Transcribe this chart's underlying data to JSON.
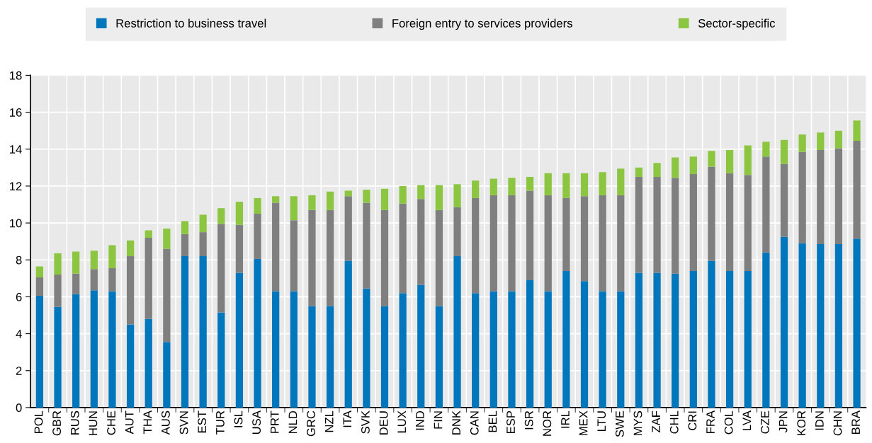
{
  "chart_data": {
    "type": "bar",
    "stacked": true,
    "categories": [
      "POL",
      "GBR",
      "RUS",
      "HUN",
      "CHE",
      "AUT",
      "THA",
      "AUS",
      "SVN",
      "EST",
      "TUR",
      "ISL",
      "USA",
      "PRT",
      "NLD",
      "GRC",
      "NZL",
      "ITA",
      "SVK",
      "DEU",
      "LUX",
      "IND",
      "FIN",
      "DNK",
      "CAN",
      "BEL",
      "ESP",
      "ISR",
      "NOR",
      "IRL",
      "MEX",
      "LTU",
      "SWE",
      "MYS",
      "ZAF",
      "CHL",
      "CRI",
      "FRA",
      "COL",
      "LVA",
      "CZE",
      "JPN",
      "KOR",
      "IDN",
      "CHN",
      "BRA"
    ],
    "series": [
      {
        "name": "Restriction to business travel",
        "color": "#0077bd",
        "values": [
          6.05,
          5.45,
          6.15,
          6.35,
          6.3,
          4.5,
          4.8,
          3.55,
          8.2,
          8.2,
          5.15,
          7.3,
          8.05,
          6.3,
          6.3,
          5.5,
          5.5,
          7.95,
          6.45,
          5.5,
          6.2,
          6.65,
          5.5,
          8.2,
          6.2,
          6.3,
          6.3,
          6.9,
          6.3,
          7.4,
          6.85,
          6.3,
          6.3,
          7.3,
          7.3,
          7.25,
          7.4,
          7.95,
          7.4,
          7.4,
          8.4,
          9.25,
          8.9,
          8.85,
          8.85,
          9.15
        ]
      },
      {
        "name": "Foreign entry to services providers",
        "color": "#7f7f7f",
        "values": [
          1.0,
          1.75,
          1.1,
          1.15,
          1.25,
          3.7,
          4.4,
          5.05,
          1.2,
          1.3,
          4.8,
          2.6,
          2.45,
          4.8,
          3.85,
          5.2,
          5.2,
          3.5,
          4.65,
          5.2,
          4.85,
          4.65,
          5.2,
          2.65,
          5.15,
          5.2,
          5.2,
          4.85,
          5.2,
          3.95,
          4.6,
          5.2,
          5.2,
          5.2,
          5.2,
          5.2,
          5.25,
          5.1,
          5.3,
          5.2,
          5.2,
          3.95,
          4.95,
          5.1,
          5.2,
          5.3
        ]
      },
      {
        "name": "Sector-specific",
        "color": "#8cc641",
        "values": [
          0.6,
          1.15,
          1.2,
          1.0,
          1.25,
          0.85,
          0.4,
          1.1,
          0.7,
          0.95,
          0.85,
          1.25,
          0.85,
          0.35,
          1.3,
          0.8,
          1.0,
          0.3,
          0.7,
          1.15,
          0.95,
          0.75,
          1.35,
          1.25,
          0.95,
          0.9,
          0.95,
          0.75,
          1.2,
          1.35,
          1.25,
          1.25,
          1.45,
          0.5,
          0.75,
          1.1,
          0.95,
          0.85,
          1.25,
          1.6,
          0.8,
          1.3,
          0.95,
          0.95,
          0.95,
          1.1
        ]
      }
    ],
    "ylim": [
      0,
      18
    ],
    "yticks": [
      0,
      2,
      4,
      6,
      8,
      10,
      12,
      14,
      16,
      18
    ],
    "grid": true,
    "legend": "top"
  }
}
